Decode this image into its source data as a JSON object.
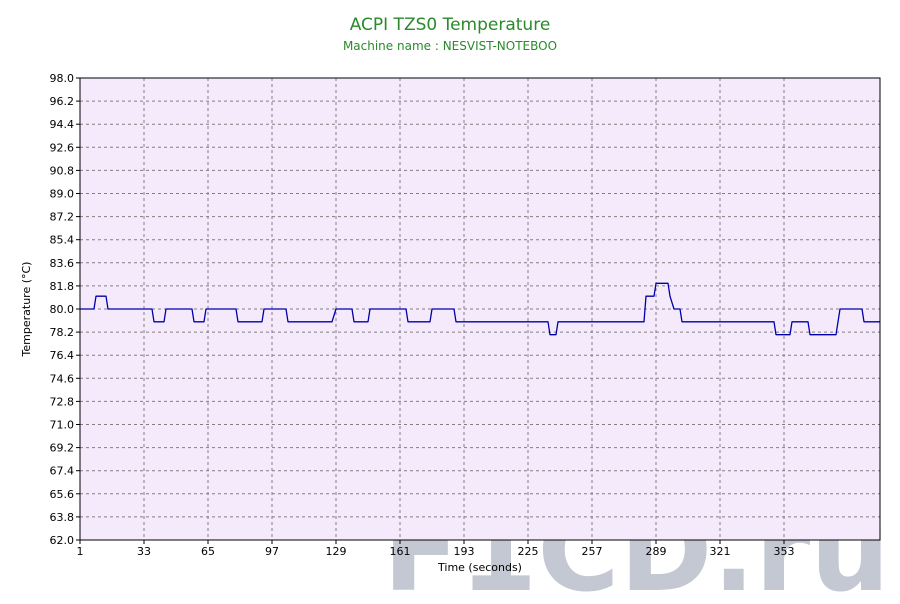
{
  "chart_data": {
    "type": "line",
    "title": "ACPI TZS0 Temperature",
    "subtitle": "Machine name : NESVIST-NOTEBOO",
    "xlabel": "Time (seconds)",
    "ylabel": "Temperature (°C)",
    "watermark": "F1CD.ru",
    "xlim": [
      1,
      401
    ],
    "ylim": [
      62.0,
      98.0
    ],
    "x_ticks": [
      1,
      33,
      65,
      97,
      129,
      161,
      193,
      225,
      257,
      289,
      321,
      353
    ],
    "y_ticks": [
      "62.0",
      "63.8",
      "65.6",
      "67.4",
      "69.2",
      "71.0",
      "72.8",
      "74.6",
      "76.4",
      "78.2",
      "80.0",
      "81.8",
      "83.6",
      "85.4",
      "87.2",
      "89.0",
      "90.8",
      "92.6",
      "94.4",
      "96.2",
      "98.0"
    ],
    "grid": true,
    "colors": {
      "line": "#0000aa",
      "plot_background": "#f5eafc",
      "grid": "#808080",
      "title": "#2a8a2a",
      "subtitle": "#2a8a2a",
      "watermark": "#b9bfcc"
    },
    "series": [
      {
        "points": [
          [
            1,
            80.0
          ],
          [
            8,
            80.0
          ],
          [
            9,
            81.0
          ],
          [
            14,
            81.0
          ],
          [
            15,
            80.0
          ],
          [
            37,
            80.0
          ],
          [
            38,
            79.0
          ],
          [
            43,
            79.0
          ],
          [
            44,
            80.0
          ],
          [
            57,
            80.0
          ],
          [
            58,
            79.0
          ],
          [
            63,
            79.0
          ],
          [
            64,
            80.0
          ],
          [
            79,
            80.0
          ],
          [
            80,
            79.0
          ],
          [
            92,
            79.0
          ],
          [
            93,
            80.0
          ],
          [
            104,
            80.0
          ],
          [
            105,
            79.0
          ],
          [
            127,
            79.0
          ],
          [
            129,
            80.0
          ],
          [
            137,
            80.0
          ],
          [
            138,
            79.0
          ],
          [
            145,
            79.0
          ],
          [
            146,
            80.0
          ],
          [
            164,
            80.0
          ],
          [
            165,
            79.0
          ],
          [
            176,
            79.0
          ],
          [
            177,
            80.0
          ],
          [
            188,
            80.0
          ],
          [
            189,
            79.0
          ],
          [
            191,
            79.0
          ],
          [
            193,
            79.0
          ],
          [
            235,
            79.0
          ],
          [
            236,
            78.0
          ],
          [
            239,
            78.0
          ],
          [
            240,
            79.0
          ],
          [
            283,
            79.0
          ],
          [
            284,
            81.0
          ],
          [
            288,
            81.0
          ],
          [
            289,
            82.0
          ],
          [
            295,
            82.0
          ],
          [
            296,
            81.0
          ],
          [
            298,
            80.0
          ],
          [
            301,
            80.0
          ],
          [
            302,
            79.0
          ],
          [
            348,
            79.0
          ],
          [
            349,
            78.0
          ],
          [
            356,
            78.0
          ],
          [
            357,
            79.0
          ],
          [
            365,
            79.0
          ],
          [
            366,
            78.0
          ],
          [
            379,
            78.0
          ],
          [
            381,
            80.0
          ],
          [
            392,
            80.0
          ],
          [
            393,
            79.0
          ],
          [
            401,
            79.0
          ]
        ]
      }
    ]
  }
}
